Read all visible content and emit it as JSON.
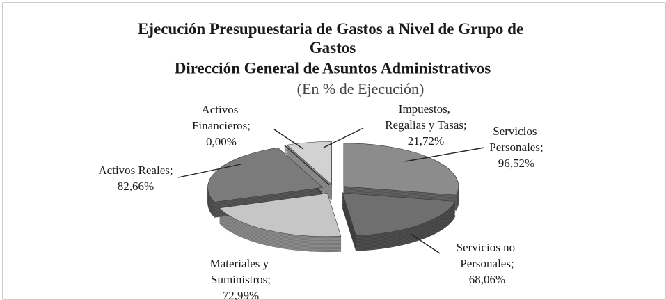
{
  "chart_data": {
    "type": "pie",
    "title": "Ejecución Presupuestaria de Gastos a Nivel de Grupo de Gastos",
    "subtitle": "Dirección General de Asuntos Administrativos",
    "note": "(En % de Ejecución)",
    "categories": [
      "Servicios Personales",
      "Servicios no Personales",
      "Materiales y Suministros",
      "Activos Reales",
      "Activos Financieros",
      "Impuestos, Regalias y Tasas"
    ],
    "values": [
      96.52,
      68.06,
      72.99,
      82.66,
      0.0,
      21.72
    ],
    "value_labels": [
      "96,52%",
      "68,06%",
      "72,99%",
      "82,66%",
      "0,00%",
      "21,72%"
    ],
    "label_separator": ";",
    "colors": [
      "#8c8c8c",
      "#6f6f6f",
      "#c6c6c6",
      "#7b7b7b",
      "#555555",
      "#d2d2d2"
    ],
    "exploded": true,
    "three_d": true
  }
}
